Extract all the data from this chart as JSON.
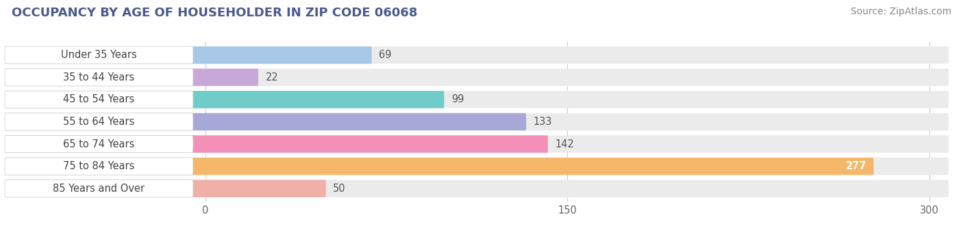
{
  "title": "OCCUPANCY BY AGE OF HOUSEHOLDER IN ZIP CODE 06068",
  "source": "Source: ZipAtlas.com",
  "categories": [
    "Under 35 Years",
    "35 to 44 Years",
    "45 to 54 Years",
    "55 to 64 Years",
    "65 to 74 Years",
    "75 to 84 Years",
    "85 Years and Over"
  ],
  "values": [
    69,
    22,
    99,
    133,
    142,
    277,
    50
  ],
  "bar_colors": [
    "#a8c8e8",
    "#c8a8d8",
    "#70ccc8",
    "#a8a8d8",
    "#f490b8",
    "#f5b86a",
    "#f0b0a8"
  ],
  "xlim_data": [
    0,
    300
  ],
  "xticks": [
    0,
    150,
    300
  ],
  "bar_height": 0.68,
  "background_color": "#ffffff",
  "bar_bg_color": "#ebebeb",
  "title_fontsize": 13,
  "label_fontsize": 10.5,
  "value_fontsize": 10.5,
  "source_fontsize": 10,
  "title_color": "#4a5a8a",
  "label_color": "#444444",
  "value_color_default": "#555555",
  "value_color_inside": "#ffffff",
  "grid_color": "#cccccc",
  "source_color": "#888888"
}
